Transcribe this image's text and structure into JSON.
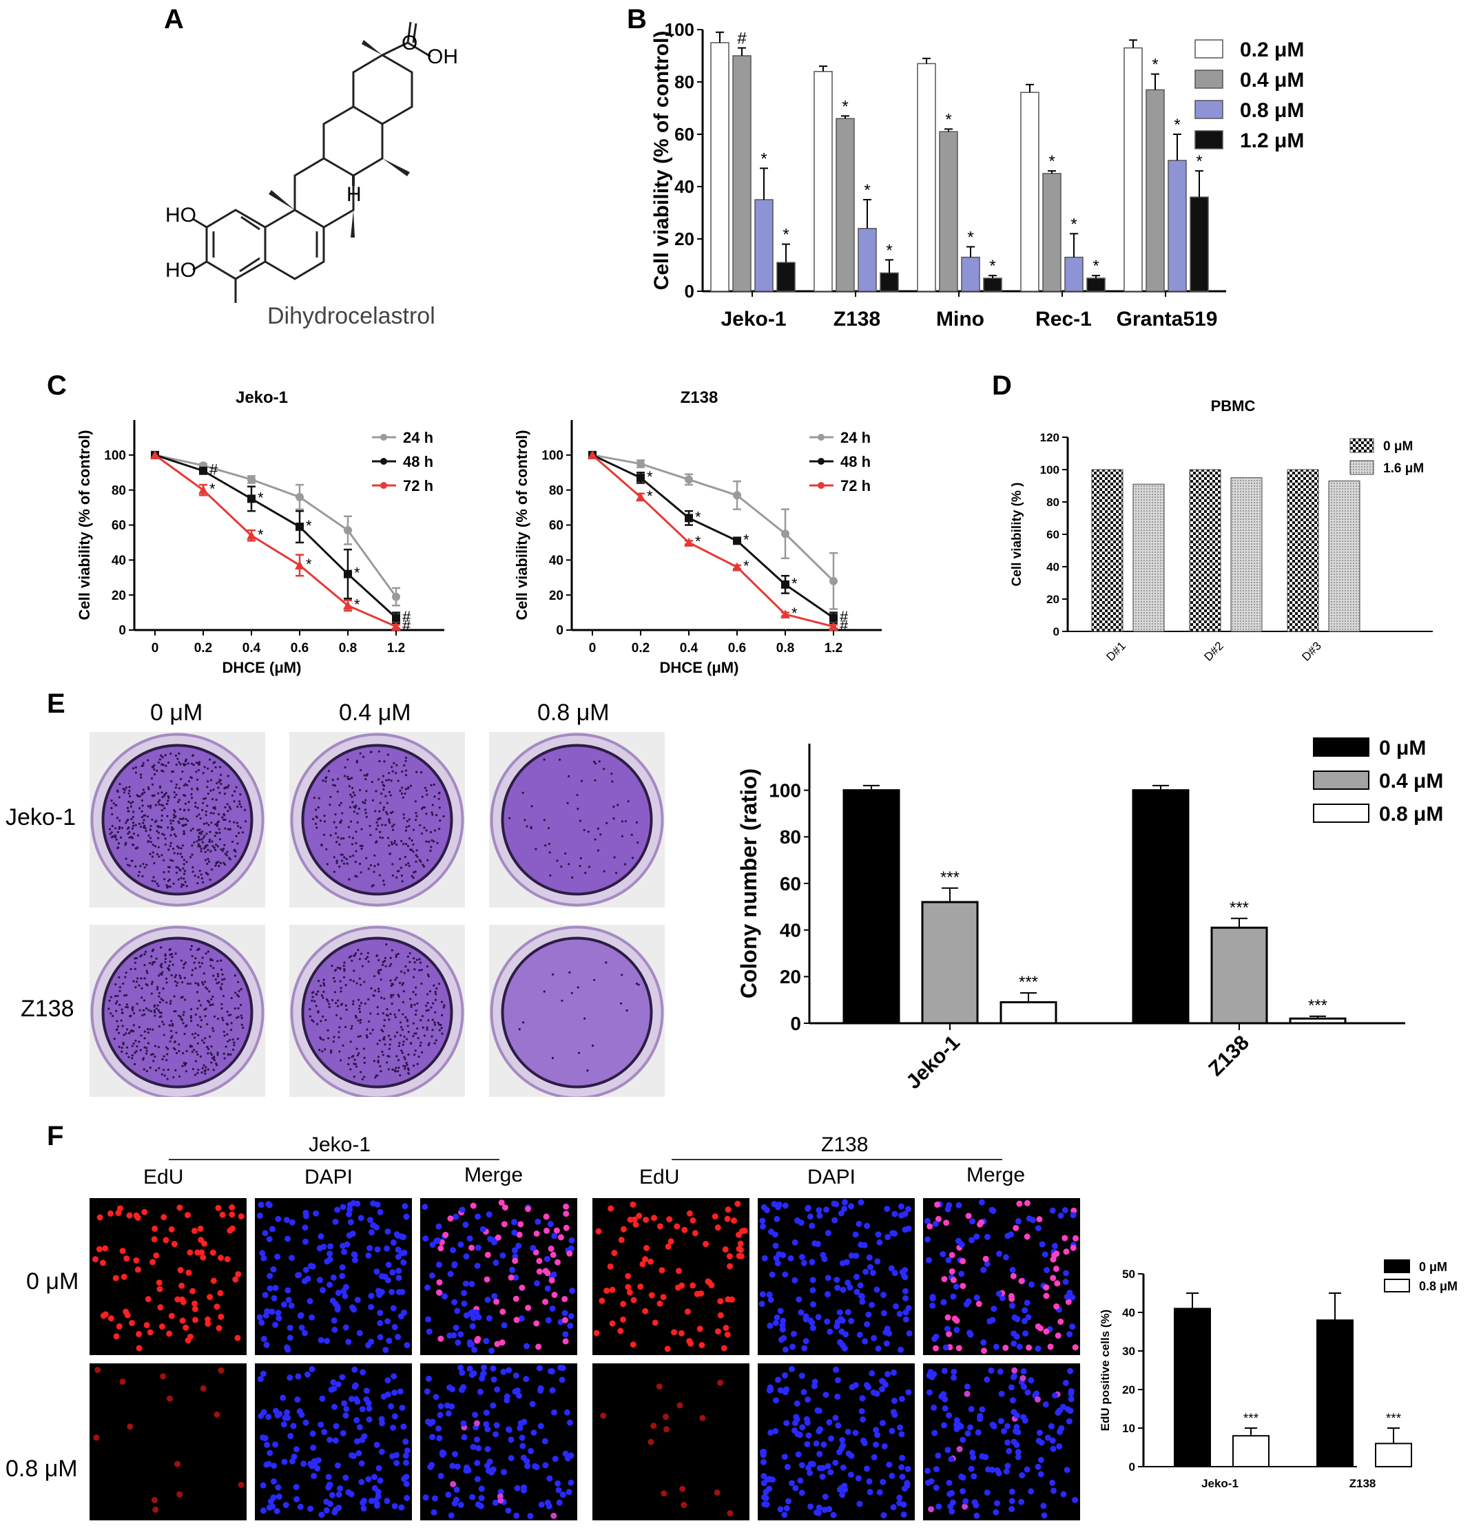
{
  "panels": {
    "A": {
      "letter": "A",
      "compound_name": "Dihydrocelastrol",
      "atom_labels": {
        "o": "O",
        "oh_top": "OH",
        "h": "H",
        "ho_1": "HO",
        "ho_2": "HO"
      }
    },
    "B": {
      "letter": "B"
    },
    "C": {
      "letter": "C"
    },
    "D": {
      "letter": "D"
    },
    "E": {
      "letter": "E",
      "dish_cols": [
        "0 μM",
        "0.4 μM",
        "0.8 μM"
      ],
      "dish_rows": [
        "Jeko-1",
        "Z138"
      ]
    },
    "F": {
      "letter": "F",
      "groups": [
        {
          "name": "Jeko-1",
          "channels": [
            "EdU",
            "DAPI",
            "Merge"
          ]
        },
        {
          "name": "Z138",
          "channels": [
            "EdU",
            "DAPI",
            "Merge"
          ]
        }
      ],
      "rows": [
        "0 μM",
        "0.8 μM"
      ]
    }
  },
  "colors": {
    "c_gray": "#9a9a9a",
    "c_black": "#111111",
    "c_red": "#e53935",
    "b_white": "#ffffff",
    "b_gray": "#9a9a9a",
    "b_blue": "#8e93d6",
    "b_black": "#111111",
    "e_black": "#000000",
    "e_gray": "#a4a4a4",
    "dish_purple": "#7a4ab0",
    "edu_red": "#ff2020",
    "dapi_blue": "#2a2aff"
  },
  "chart_data": [
    {
      "id": "B",
      "type": "bar",
      "categories": [
        "Jeko-1",
        "Z138",
        "Mino",
        "Rec-1",
        "Granta519"
      ],
      "series": [
        {
          "name": "0.2 μM",
          "values": [
            95,
            84,
            87,
            76,
            93
          ],
          "errors": [
            4,
            2,
            2,
            3,
            3
          ],
          "marks": [
            "",
            "",
            "",
            "",
            ""
          ]
        },
        {
          "name": "0.4 μM",
          "values": [
            90,
            66,
            61,
            45,
            77
          ],
          "errors": [
            3,
            1,
            1,
            1,
            6
          ],
          "marks": [
            "#",
            "*",
            "*",
            "*",
            "*"
          ]
        },
        {
          "name": "0.8 μM",
          "values": [
            35,
            24,
            13,
            13,
            50
          ],
          "errors": [
            12,
            11,
            4,
            9,
            10
          ],
          "marks": [
            "*",
            "*",
            "*",
            "*",
            "*"
          ]
        },
        {
          "name": "1.2 μM",
          "values": [
            11,
            7,
            5,
            5,
            36
          ],
          "errors": [
            7,
            5,
            1,
            1,
            10
          ],
          "marks": [
            "*",
            "*",
            "*",
            "*",
            "*"
          ]
        }
      ],
      "ylabel": "Cell viability (% of control)",
      "ylim": [
        0,
        100
      ],
      "yticks": [
        0,
        20,
        40,
        60,
        80,
        100
      ],
      "legend": "right"
    },
    {
      "id": "C1",
      "type": "line",
      "title": "Jeko-1",
      "xlabel": "DHCE (μM)",
      "ylabel": "Cell viability (% of control)",
      "x": [
        0,
        0.2,
        0.4,
        0.6,
        0.8,
        1.2
      ],
      "xticks": [
        "0",
        "0.2",
        "0.4",
        "0.6",
        "0.8",
        "1.2"
      ],
      "ylim": [
        0,
        120
      ],
      "yticks": [
        0,
        20,
        40,
        60,
        80,
        100
      ],
      "series": [
        {
          "name": "24 h",
          "values": [
            100,
            94,
            86,
            76,
            57,
            19
          ],
          "errors": [
            0,
            1,
            2,
            7,
            8,
            5
          ],
          "marks": [
            "",
            "",
            "",
            "",
            "",
            ""
          ]
        },
        {
          "name": "48 h",
          "values": [
            100,
            91,
            75,
            59,
            32,
            7
          ],
          "errors": [
            0,
            1,
            7,
            9,
            14,
            3
          ],
          "marks": [
            "",
            "#",
            "*",
            "*",
            "*",
            "#"
          ]
        },
        {
          "name": "72 h",
          "values": [
            100,
            80,
            54,
            37,
            14,
            2
          ],
          "errors": [
            0,
            3,
            3,
            6,
            3,
            1
          ],
          "marks": [
            "",
            "*",
            "*",
            "*",
            "*",
            "#"
          ]
        }
      ],
      "legend": "top-right"
    },
    {
      "id": "C2",
      "type": "line",
      "title": "Z138",
      "xlabel": "DHCE (μM)",
      "ylabel": "Cell viability (% of control)",
      "x": [
        0,
        0.2,
        0.4,
        0.6,
        0.8,
        1.2
      ],
      "xticks": [
        "0",
        "0.2",
        "0.4",
        "0.6",
        "0.8",
        "1.2"
      ],
      "ylim": [
        0,
        120
      ],
      "yticks": [
        0,
        20,
        40,
        60,
        80,
        100
      ],
      "series": [
        {
          "name": "24 h",
          "values": [
            100,
            95,
            86,
            77,
            55,
            28
          ],
          "errors": [
            0,
            2,
            3,
            8,
            14,
            16
          ],
          "marks": [
            "",
            "",
            "",
            "",
            "",
            ""
          ]
        },
        {
          "name": "48 h",
          "values": [
            100,
            87,
            64,
            51,
            26,
            7
          ],
          "errors": [
            0,
            3,
            4,
            1,
            5,
            3
          ],
          "marks": [
            "",
            "*",
            "*",
            "*",
            "*",
            "#"
          ]
        },
        {
          "name": "72 h",
          "values": [
            100,
            76,
            50,
            36,
            9,
            2
          ],
          "errors": [
            0,
            2,
            1,
            1,
            1,
            1
          ],
          "marks": [
            "",
            "*",
            "*",
            "*",
            "*",
            "#"
          ]
        }
      ],
      "legend": "top-right"
    },
    {
      "id": "D",
      "type": "bar",
      "title": "PBMC",
      "categories": [
        "D#1",
        "D#2",
        "D#3"
      ],
      "series": [
        {
          "name": "0 μM",
          "values": [
            100,
            100,
            100
          ]
        },
        {
          "name": "1.6 μM",
          "values": [
            91,
            95,
            93
          ]
        }
      ],
      "ylabel": "Cell viability (% )",
      "ylim": [
        0,
        120
      ],
      "yticks": [
        0,
        20,
        40,
        60,
        80,
        100,
        120
      ],
      "legend": "top-right"
    },
    {
      "id": "E",
      "type": "bar",
      "categories": [
        "Jeko-1",
        "Z138"
      ],
      "series": [
        {
          "name": "0 μM",
          "values": [
            100,
            100
          ],
          "errors": [
            2,
            2
          ],
          "marks": [
            "",
            ""
          ]
        },
        {
          "name": "0.4 μM",
          "values": [
            52,
            41
          ],
          "errors": [
            6,
            4
          ],
          "marks": [
            "***",
            "***"
          ]
        },
        {
          "name": "0.8 μM",
          "values": [
            9,
            2
          ],
          "errors": [
            4,
            1
          ],
          "marks": [
            "***",
            "***"
          ]
        }
      ],
      "ylabel": "Colony number (ratio)",
      "ylim": [
        0,
        120
      ],
      "yticks": [
        0,
        20,
        40,
        60,
        80,
        100
      ],
      "legend": "top-right"
    },
    {
      "id": "F",
      "type": "bar",
      "categories": [
        "Jeko-1",
        "Z138"
      ],
      "series": [
        {
          "name": "0 μM",
          "values": [
            41,
            38
          ],
          "errors": [
            4,
            7
          ],
          "marks": [
            "",
            ""
          ]
        },
        {
          "name": "0.8 μM",
          "values": [
            8,
            6
          ],
          "errors": [
            2,
            4
          ],
          "marks": [
            "***",
            "***"
          ]
        }
      ],
      "ylabel": "EdU positive cells (%)",
      "ylim": [
        0,
        50
      ],
      "yticks": [
        0,
        10,
        20,
        30,
        40,
        50
      ],
      "legend": "top-right"
    }
  ]
}
